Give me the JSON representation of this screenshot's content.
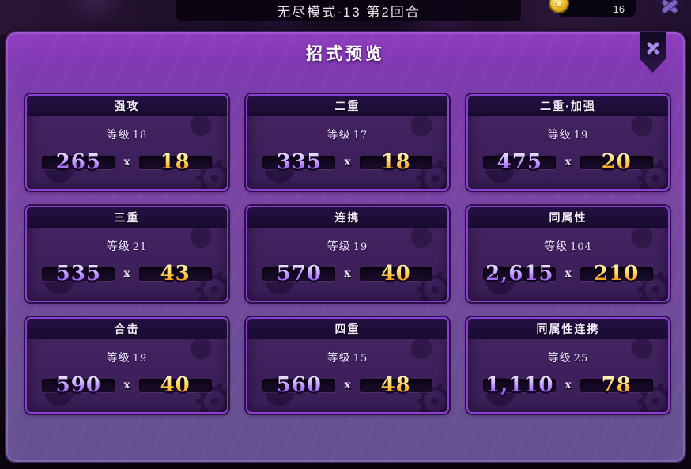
{
  "top_bar": {
    "title": "无尽模式-13 第2回合",
    "coin_count": "16",
    "icons": {
      "coin": "star-coin",
      "menu": "crossed-hammers"
    }
  },
  "dialog": {
    "title": "招式预览",
    "close_icon": "x-mark",
    "level_prefix": "等级",
    "multiply_symbol": "x",
    "watermark_icon": "gear",
    "watermark_glyph": "⚙",
    "coin_star_glyph": "★",
    "cards": [
      {
        "name": "强攻",
        "level": "18",
        "power": "265",
        "hits": "18"
      },
      {
        "name": "二重",
        "level": "17",
        "power": "335",
        "hits": "18"
      },
      {
        "name": "二重·加强",
        "level": "19",
        "power": "475",
        "hits": "20"
      },
      {
        "name": "三重",
        "level": "21",
        "power": "535",
        "hits": "43"
      },
      {
        "name": "连携",
        "level": "19",
        "power": "570",
        "hits": "40"
      },
      {
        "name": "同属性",
        "level": "104",
        "power": "2,615",
        "hits": "210"
      },
      {
        "name": "合击",
        "level": "19",
        "power": "590",
        "hits": "40"
      },
      {
        "name": "四重",
        "level": "15",
        "power": "560",
        "hits": "48"
      },
      {
        "name": "同属性连携",
        "level": "25",
        "power": "1,110",
        "hits": "78"
      }
    ]
  },
  "colors": {
    "card_border": "#8a3ed2",
    "power_top": "#efe3ff",
    "power_bottom": "#8d4ce6",
    "hits_top": "#fff3c0",
    "hits_bottom": "#ef8c00",
    "dialog_top": "#8a35bc",
    "dialog_bottom": "#655092",
    "coin_gold": "#e8b621"
  }
}
